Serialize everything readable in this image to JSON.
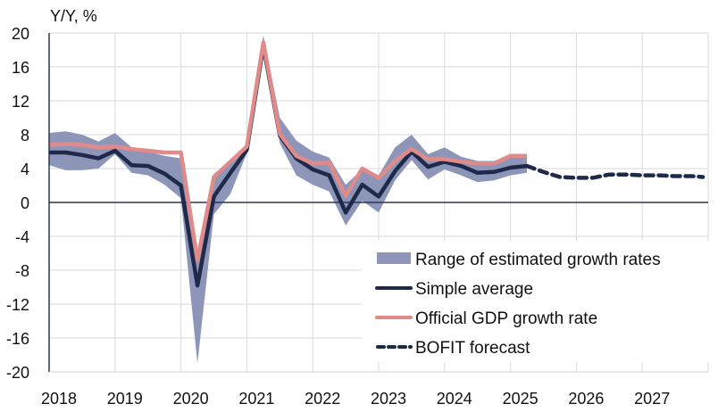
{
  "chart_data": {
    "type": "line",
    "title": "",
    "ylabel": "Y/Y, %",
    "xlabel": "",
    "ylim": [
      -20,
      20
    ],
    "yticks": [
      "20",
      "16",
      "12",
      "8",
      "4",
      "0",
      "-4",
      "-8",
      "-12",
      "-16",
      "-20"
    ],
    "ytick_values": [
      20,
      16,
      12,
      8,
      4,
      0,
      -4,
      -8,
      -12,
      -16,
      -20
    ],
    "xlim": [
      2018,
      2028
    ],
    "xticks": [
      "2018",
      "2019",
      "2020",
      "2021",
      "2022",
      "2023",
      "2024",
      "2025",
      "2026",
      "2027"
    ],
    "xtick_values": [
      2018,
      2019,
      2020,
      2021,
      2022,
      2023,
      2024,
      2025,
      2026,
      2027
    ],
    "grid": true,
    "legend_position": "bottom-right",
    "x": [
      2018.0,
      2018.25,
      2018.5,
      2018.75,
      2019.0,
      2019.25,
      2019.5,
      2019.75,
      2020.0,
      2020.25,
      2020.5,
      2020.75,
      2021.0,
      2021.25,
      2021.5,
      2021.75,
      2022.0,
      2022.25,
      2022.5,
      2022.75,
      2023.0,
      2023.25,
      2023.5,
      2023.75,
      2024.0,
      2024.25,
      2024.5,
      2024.75,
      2025.0,
      2025.25
    ],
    "series": [
      {
        "name": "Range of estimated growth rates",
        "kind": "band",
        "color": "#8d96b8",
        "upper": [
          8.2,
          8.4,
          8.0,
          7.2,
          8.2,
          6.5,
          6.0,
          5.5,
          5.2,
          -6.0,
          3.4,
          4.8,
          6.8,
          19.7,
          10.0,
          7.3,
          6.0,
          5.3,
          2.1,
          3.9,
          3.2,
          6.5,
          8.0,
          5.7,
          6.5,
          5.4,
          4.9,
          4.9,
          5.6,
          5.6
        ],
        "lower": [
          4.4,
          3.8,
          3.8,
          4.0,
          5.7,
          3.5,
          3.2,
          2.1,
          0.5,
          -19.0,
          -1.4,
          1.0,
          5.8,
          17.5,
          7.0,
          3.2,
          2.1,
          1.3,
          -2.7,
          0.2,
          -1.2,
          2.6,
          5.0,
          2.7,
          3.9,
          3.2,
          2.4,
          2.6,
          3.2,
          3.5
        ]
      },
      {
        "name": "Simple average",
        "kind": "line",
        "color": "#1f2a4a",
        "values": [
          5.9,
          5.9,
          5.6,
          5.2,
          6.1,
          4.4,
          4.3,
          3.4,
          2.0,
          -9.8,
          0.7,
          3.5,
          6.2,
          18.5,
          7.9,
          5.2,
          3.9,
          3.2,
          -1.2,
          2.1,
          0.7,
          3.7,
          6.0,
          4.2,
          4.8,
          4.3,
          3.5,
          3.6,
          4.1,
          4.3
        ]
      },
      {
        "name": "Official GDP growth rate",
        "kind": "line",
        "color": "#e08a8a",
        "values": [
          6.8,
          6.9,
          6.8,
          6.5,
          6.6,
          6.3,
          6.1,
          5.9,
          5.9,
          -6.8,
          3.0,
          4.8,
          6.6,
          18.9,
          8.1,
          5.5,
          4.6,
          4.7,
          0.8,
          4.0,
          2.9,
          4.9,
          6.3,
          5.1,
          5.1,
          4.8,
          4.6,
          4.6,
          5.5,
          5.5
        ]
      },
      {
        "name": "BOFIT forecast",
        "kind": "dashed",
        "color": "#1f2a4a",
        "x": [
          2025.25,
          2025.5,
          2025.75,
          2026.0,
          2026.25,
          2026.5,
          2026.75,
          2027.0,
          2027.25,
          2027.5,
          2027.75,
          2027.92
        ],
        "values": [
          4.3,
          3.6,
          3.0,
          2.9,
          2.9,
          3.3,
          3.3,
          3.2,
          3.2,
          3.1,
          3.1,
          3.0
        ]
      }
    ]
  },
  "legend": {
    "items": [
      {
        "label": "Range of estimated growth rates",
        "kind": "band",
        "color": "#8d96b8"
      },
      {
        "label": "Simple average",
        "kind": "line",
        "color": "#1f2a4a"
      },
      {
        "label": "Official GDP growth rate",
        "kind": "line",
        "color": "#e08a8a"
      },
      {
        "label": "BOFIT forecast",
        "kind": "dashed",
        "color": "#1f2a4a"
      }
    ]
  },
  "colors": {
    "grid": "#d9d9e0",
    "axis": "#2b3553",
    "text": "#111111"
  }
}
